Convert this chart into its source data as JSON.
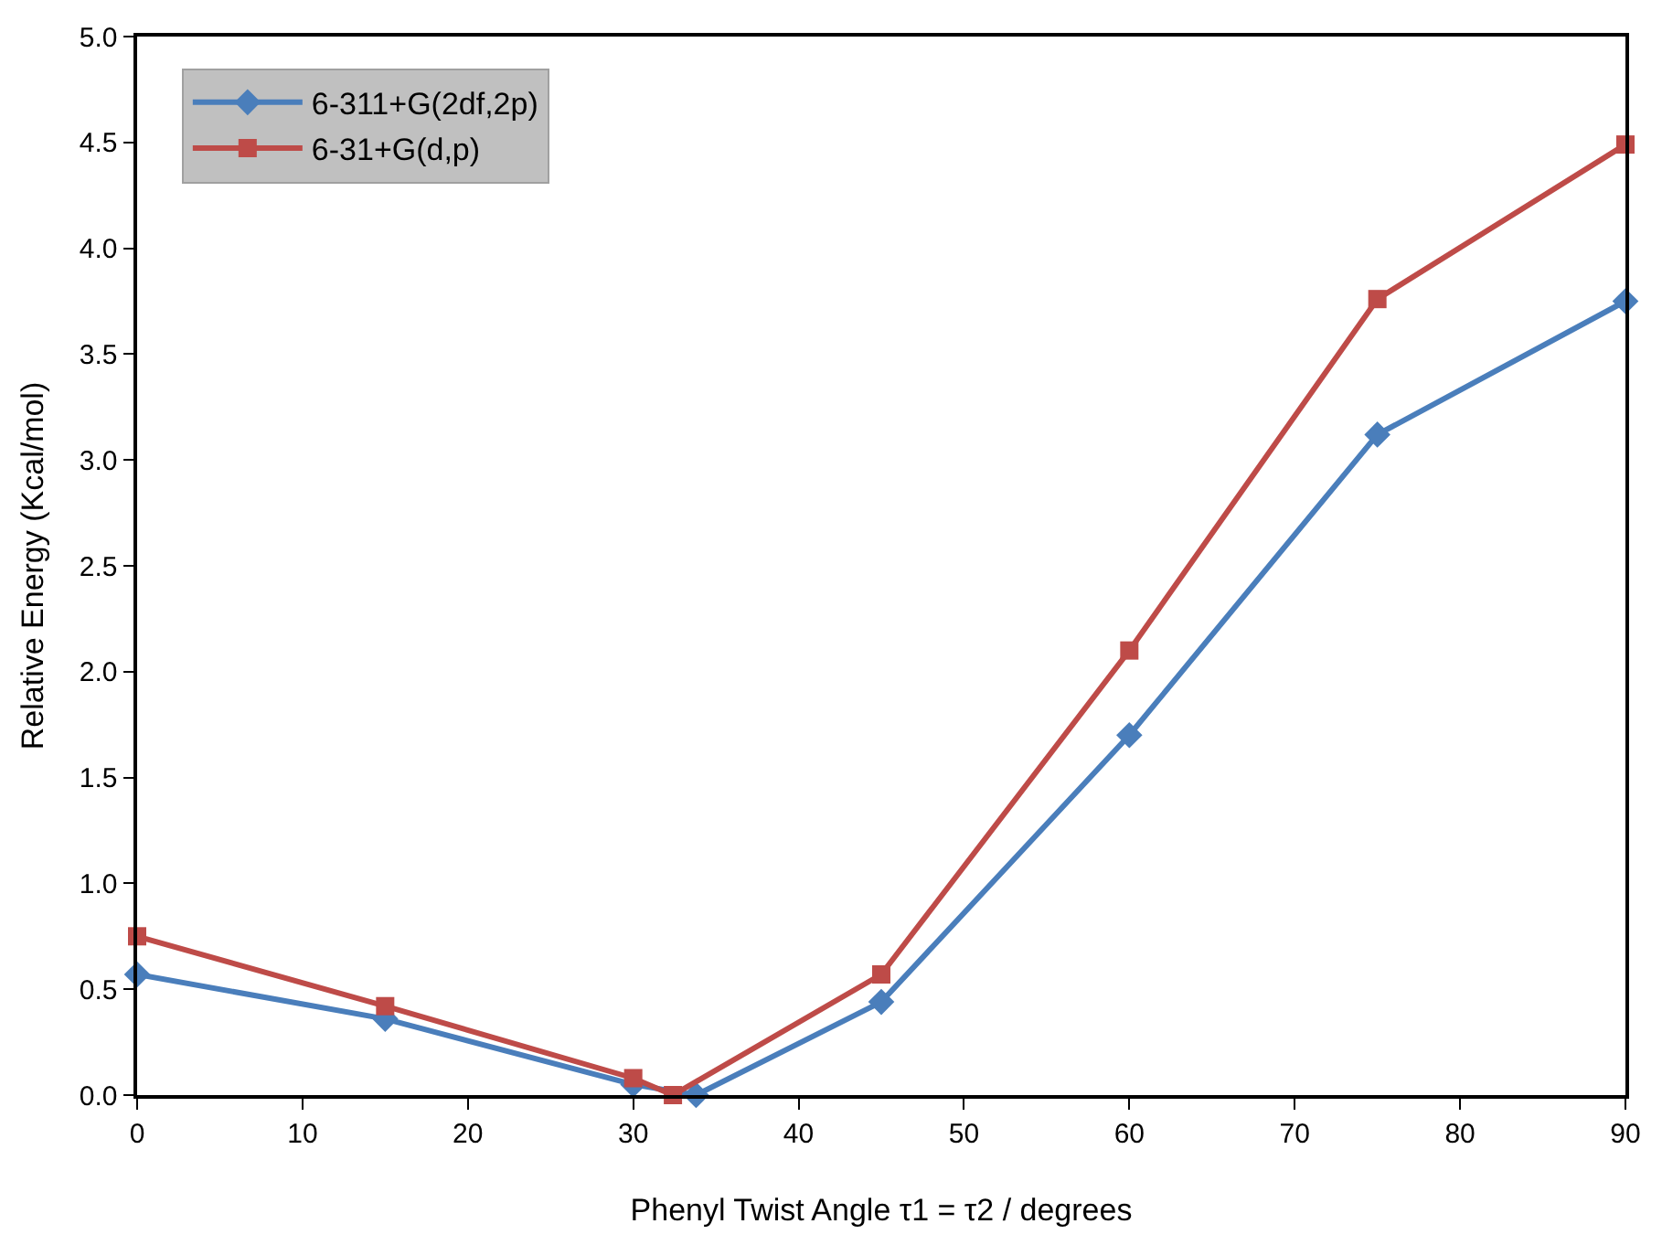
{
  "chart_data": {
    "type": "line",
    "xlabel": "Phenyl Twist Angle τ1 = τ2 / degrees",
    "ylabel": "Relative Energy (Kcal/mol)",
    "xlim": [
      0,
      90
    ],
    "xticks": [
      0,
      10,
      20,
      30,
      40,
      50,
      60,
      70,
      80,
      90
    ],
    "ylim": [
      0,
      5
    ],
    "yticks": [
      {
        "value": 0,
        "label": "0.0"
      },
      {
        "value": 0.5,
        "label": "0.5"
      },
      {
        "value": 1,
        "label": "1.0"
      },
      {
        "value": 1.5,
        "label": "1.5"
      },
      {
        "value": 2,
        "label": "2.0"
      },
      {
        "value": 2.5,
        "label": "2.5"
      },
      {
        "value": 3,
        "label": "3.0"
      },
      {
        "value": 3.5,
        "label": "3.5"
      },
      {
        "value": 4,
        "label": "4.0"
      },
      {
        "value": 4.5,
        "label": "4.5"
      },
      {
        "value": 5,
        "label": "5.0"
      }
    ],
    "legend": "top left",
    "line_style": "solid",
    "series": [
      {
        "name": "6-311+G(2df,2p)",
        "color": "#4a7ebb",
        "marker": "diamond",
        "x": [
          0,
          15,
          30,
          33.8,
          45,
          60,
          75,
          90
        ],
        "values": [
          0.57,
          0.36,
          0.05,
          0.0,
          0.44,
          1.7,
          3.12,
          3.75
        ]
      },
      {
        "name": "6-31+G(d,p)",
        "color": "#be4b48",
        "marker": "square",
        "x": [
          0,
          15,
          30,
          32.4,
          45,
          60,
          75,
          90
        ],
        "values": [
          0.75,
          0.42,
          0.08,
          0.0,
          0.57,
          2.1,
          3.76,
          4.49
        ]
      }
    ]
  }
}
